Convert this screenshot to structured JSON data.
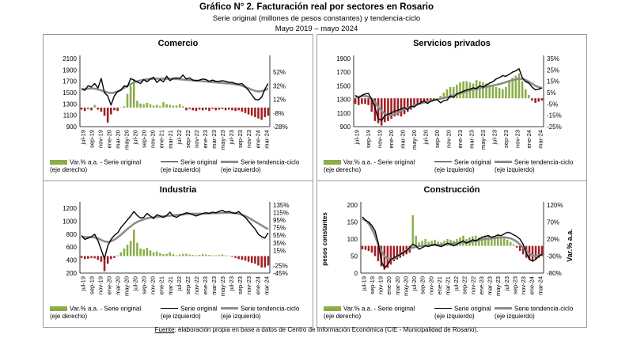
{
  "header": {
    "title": "Gráfico N° 2. Facturación real por sectores en Rosario",
    "subtitle": "Serie original (millones de pesos constantes) y tendencia-ciclo",
    "period": "Mayo 2019 – mayo 2024"
  },
  "footer": {
    "label": "Fuente",
    "text": ": elaboración propia en base a datos de Centro de Información Económica (CIE - Municipalidad de Rosario)."
  },
  "colors": {
    "bar_pos": "#8aae48",
    "bar_neg": "#a11f25",
    "original": "#000000",
    "trend": "#8c8c8c"
  },
  "chart_data": [
    {
      "type": "line+bar",
      "title": "Comercio",
      "x_labels": [
        "jul-19",
        "sep-19",
        "nov-19",
        "ene-20",
        "mar-20",
        "may-20",
        "jul-20",
        "sep-20",
        "nov-20",
        "ene-21",
        "mar-21",
        "jul-22",
        "sep-22",
        "nov-22",
        "ene-23",
        "mar-23",
        "may-23",
        "jul-23",
        "sep-23",
        "nov-23",
        "ene-24",
        "mar-24"
      ],
      "y_left": {
        "ticks": [
          "2100",
          "1900",
          "1700",
          "1500",
          "1300",
          "1100",
          "900"
        ],
        "range": [
          900,
          2100
        ]
      },
      "y_right": {
        "ticks": [
          "52%",
          "32%",
          "12%",
          "-8%",
          "-28%"
        ],
        "range": [
          -28,
          72
        ]
      },
      "original": [
        1570,
        1540,
        1620,
        1600,
        1660,
        1580,
        1750,
        1500,
        1440,
        1280,
        1440,
        1520,
        1540,
        1620,
        1600,
        1750,
        1720,
        1690,
        1660,
        1730,
        1690,
        1740,
        1770,
        1680,
        1730,
        1690,
        1790,
        1710,
        1750,
        1760,
        1750,
        1810,
        1740,
        1760,
        1720,
        1710,
        1720,
        1740,
        1730,
        1700,
        1720,
        1700,
        1700,
        1710,
        1700,
        1680,
        1680,
        1660,
        1650,
        1660,
        1600,
        1540,
        1460,
        1380,
        1370,
        1420,
        1560,
        1660
      ],
      "trend": [
        1560,
        1560,
        1570,
        1575,
        1570,
        1555,
        1540,
        1520,
        1500,
        1495,
        1500,
        1520,
        1550,
        1585,
        1620,
        1650,
        1680,
        1700,
        1715,
        1725,
        1735,
        1740,
        1745,
        1745,
        1745,
        1745,
        1745,
        1745,
        1745,
        1740,
        1735,
        1730,
        1725,
        1720,
        1715,
        1710,
        1705,
        1700,
        1695,
        1690,
        1685,
        1680,
        1675,
        1670,
        1665,
        1660,
        1655,
        1645,
        1635,
        1620,
        1600,
        1575,
        1550,
        1530,
        1520,
        1525,
        1545,
        1570
      ],
      "var_aa": [
        -3,
        -5,
        -2,
        -4,
        4,
        -3,
        -6,
        -12,
        -22,
        -10,
        -4,
        -5,
        0,
        2,
        20,
        32,
        42,
        10,
        6,
        5,
        7,
        5,
        3,
        4,
        2,
        8,
        5,
        4,
        3,
        3,
        5,
        2,
        -4,
        -2,
        -4,
        -5,
        -3,
        -4,
        -3,
        -5,
        -2,
        -4,
        -3,
        -2,
        -4,
        -3,
        -4,
        -5,
        -4,
        -6,
        -8,
        -10,
        -12,
        -14,
        -16,
        -18,
        -14,
        -12
      ],
      "legend": {
        "var": "Var.% a.a. - Serie original",
        "var_sub": "(eje derecho)",
        "orig": "Serie original",
        "orig_sub": "(eje izquierdo)",
        "trend": "Serie tendencia-ciclo",
        "trend_sub": "(eje izquierdo)"
      }
    },
    {
      "type": "line+bar",
      "title": "Servicios privados",
      "x_labels": [
        "jul-19",
        "sep-19",
        "nov-19",
        "ene-20",
        "mar-20",
        "may-20",
        "jul-20",
        "sep-20",
        "nov-20",
        "ene-23",
        "mar-23",
        "may-23",
        "jul-23",
        "sep-23",
        "nov-23",
        "ene-24",
        "mar-24"
      ],
      "y_left": {
        "ticks": [
          "1900",
          "1700",
          "1500",
          "1300",
          "1100",
          "900"
        ],
        "range": [
          900,
          1900
        ]
      },
      "y_right": {
        "ticks": [
          "35%",
          "25%",
          "15%",
          "5%",
          "-5%",
          "-15%",
          "-25%"
        ],
        "range": [
          -25,
          35
        ]
      },
      "original": [
        1360,
        1320,
        1360,
        1380,
        1390,
        1300,
        1180,
        1020,
        990,
        1060,
        1080,
        1100,
        1130,
        1140,
        1160,
        1180,
        1150,
        1200,
        1190,
        1230,
        1250,
        1280,
        1240,
        1270,
        1290,
        1300,
        1250,
        1280,
        1290,
        1350,
        1330,
        1380,
        1400,
        1420,
        1440,
        1450,
        1470,
        1460,
        1500,
        1480,
        1510,
        1540,
        1560,
        1600,
        1620,
        1650,
        1640,
        1670,
        1700,
        1720,
        1750,
        1620,
        1560,
        1540,
        1480,
        1440,
        1450,
        1470
      ],
      "trend": [
        1340,
        1340,
        1345,
        1350,
        1340,
        1310,
        1260,
        1190,
        1130,
        1090,
        1070,
        1070,
        1085,
        1105,
        1130,
        1155,
        1175,
        1195,
        1210,
        1225,
        1240,
        1255,
        1265,
        1280,
        1290,
        1300,
        1310,
        1320,
        1330,
        1345,
        1360,
        1375,
        1390,
        1405,
        1420,
        1435,
        1445,
        1455,
        1465,
        1475,
        1485,
        1495,
        1505,
        1515,
        1525,
        1540,
        1555,
        1570,
        1585,
        1595,
        1605,
        1600,
        1585,
        1560,
        1530,
        1500,
        1480,
        1470
      ],
      "var_aa": [
        -5,
        -6,
        -5,
        -5,
        -6,
        -12,
        -20,
        -22,
        -24,
        -21,
        -20,
        -18,
        -16,
        -15,
        -16,
        -14,
        -12,
        -10,
        -8,
        -5,
        -5,
        -4,
        -3,
        -2,
        -1,
        0,
        2,
        5,
        8,
        10,
        10,
        12,
        14,
        15,
        15,
        14,
        13,
        16,
        15,
        14,
        13,
        12,
        11,
        10,
        9,
        8,
        10,
        15,
        18,
        20,
        22,
        15,
        8,
        3,
        -2,
        -4,
        -3,
        -2
      ],
      "legend": {
        "var": "Var.% a.a. - Serie original",
        "var_sub": "(eje derecho)",
        "orig": "Serie original",
        "orig_sub": "(eje izquierdo)",
        "trend": "Serie tendencia-ciclo",
        "trend_sub": "(eje izquierdo)"
      }
    },
    {
      "type": "line+bar",
      "title": "Industria",
      "x_labels": [
        "jul-19",
        "sep-19",
        "nov-19",
        "ene-20",
        "mar-20",
        "may-20",
        "jul-20",
        "sep-20",
        "nov-20",
        "ene-21",
        "mar-21",
        "jul-22",
        "sep-22",
        "nov-22",
        "ene-23",
        "mar-23",
        "may-23",
        "jul-23",
        "sep-23",
        "nov-23",
        "ene-24",
        "mar-24"
      ],
      "y_left": {
        "ticks": [
          "1200",
          "1000",
          "800",
          "600",
          "400",
          "200"
        ],
        "range": [
          200,
          1250
        ]
      },
      "y_right": {
        "ticks": [
          "135%",
          "115%",
          "95%",
          "75%",
          "55%",
          "35%",
          "15%",
          "-25%",
          "-45%"
        ],
        "range": [
          -45,
          135
        ]
      },
      "original": [
        780,
        720,
        740,
        760,
        800,
        700,
        560,
        420,
        620,
        720,
        780,
        820,
        900,
        960,
        1020,
        1080,
        1150,
        1090,
        1050,
        1060,
        1120,
        1080,
        1040,
        1100,
        1080,
        1060,
        1090,
        1140,
        1080,
        1060,
        1090,
        1110,
        1130,
        1120,
        1100,
        1080,
        1100,
        1120,
        1130,
        1120,
        1140,
        1130,
        1150,
        1170,
        1140,
        1150,
        1130,
        1120,
        1150,
        1100,
        1060,
        1000,
        940,
        880,
        800,
        760,
        740,
        820
      ],
      "trend": [
        760,
        755,
        755,
        755,
        750,
        735,
        710,
        690,
        680,
        690,
        715,
        750,
        790,
        835,
        880,
        920,
        960,
        990,
        1010,
        1030,
        1045,
        1055,
        1060,
        1065,
        1070,
        1075,
        1080,
        1085,
        1090,
        1095,
        1100,
        1105,
        1110,
        1115,
        1115,
        1115,
        1115,
        1115,
        1118,
        1120,
        1122,
        1124,
        1126,
        1128,
        1130,
        1130,
        1128,
        1124,
        1115,
        1100,
        1080,
        1055,
        1025,
        995,
        965,
        935,
        905,
        880
      ],
      "var_aa": [
        -5,
        -8,
        -7,
        -5,
        -6,
        -10,
        -15,
        -40,
        -20,
        -8,
        -5,
        2,
        10,
        20,
        30,
        40,
        70,
        35,
        20,
        18,
        22,
        15,
        10,
        12,
        8,
        5,
        6,
        10,
        5,
        2,
        4,
        5,
        6,
        4,
        3,
        2,
        3,
        5,
        4,
        3,
        2,
        2,
        3,
        4,
        2,
        1,
        -2,
        -5,
        -8,
        -10,
        -12,
        -15,
        -18,
        -20,
        -25,
        -30,
        -30,
        -25
      ],
      "legend": {
        "var": "Var.% a.a. - Serie original",
        "var_sub": "(eje derecho)",
        "orig": "Serie original",
        "orig_sub": "(eje izquierdo)",
        "trend": "Serie tendencia-ciclo",
        "trend_sub": "(eje izquierdo)"
      }
    },
    {
      "type": "line+bar",
      "title": "Construcción",
      "x_labels": [
        "jul-19",
        "sep-19",
        "nov-19",
        "ene-20",
        "mar-20",
        "may-20",
        "jul-20",
        "sep-20",
        "nov-20",
        "ene-21",
        "mar-21",
        "jul-22",
        "sep-22",
        "nov-22",
        "ene-23",
        "mar-23",
        "may-23",
        "jul-23",
        "sep-23",
        "nov-23",
        "ene-24",
        "mar-24"
      ],
      "y_left": {
        "title": "pesos constantes",
        "ticks": [
          "200",
          "150",
          "100",
          "50",
          "0"
        ],
        "range": [
          0,
          200
        ]
      },
      "y_right": {
        "title": "Var.% a.a.",
        "ticks": [
          "120%",
          "70%",
          "20%",
          "-30%",
          "-80%"
        ],
        "range": [
          -80,
          120
        ]
      },
      "original": [
        165,
        155,
        150,
        140,
        125,
        90,
        35,
        15,
        25,
        40,
        45,
        50,
        55,
        60,
        65,
        75,
        85,
        80,
        70,
        75,
        80,
        78,
        82,
        85,
        80,
        78,
        82,
        88,
        85,
        80,
        85,
        90,
        95,
        88,
        92,
        98,
        95,
        100,
        105,
        108,
        110,
        105,
        108,
        112,
        110,
        115,
        120,
        118,
        112,
        108,
        100,
        85,
        60,
        40,
        35,
        40,
        50,
        55
      ],
      "trend": [
        160,
        155,
        145,
        130,
        110,
        85,
        65,
        50,
        42,
        40,
        42,
        48,
        55,
        62,
        68,
        72,
        75,
        77,
        79,
        80,
        81,
        82,
        82,
        82,
        82,
        83,
        84,
        85,
        86,
        87,
        88,
        89,
        90,
        91,
        92,
        93,
        95,
        97,
        99,
        100,
        101,
        102,
        103,
        104,
        105,
        105,
        104,
        102,
        98,
        92,
        84,
        75,
        66,
        58,
        52,
        50,
        52,
        55
      ],
      "var_aa": [
        -10,
        -12,
        -15,
        -20,
        -30,
        -45,
        -60,
        -70,
        -65,
        -55,
        -45,
        -40,
        -35,
        -30,
        -25,
        -20,
        90,
        30,
        10,
        15,
        20,
        12,
        15,
        18,
        12,
        10,
        15,
        20,
        18,
        15,
        20,
        25,
        30,
        20,
        25,
        28,
        30,
        25,
        28,
        30,
        32,
        25,
        28,
        30,
        25,
        22,
        18,
        12,
        5,
        -5,
        -15,
        -25,
        -35,
        -40,
        -45,
        -40,
        -35,
        -30
      ],
      "legend": {
        "var": "Var.% a.a. - Serie original",
        "var_sub": "(eje derecho)",
        "orig": "Serie original",
        "orig_sub": "(eje izquierdo)",
        "trend": "Serie tendencia-ciclo",
        "trend_sub": "(eje izquierdo)"
      }
    }
  ]
}
